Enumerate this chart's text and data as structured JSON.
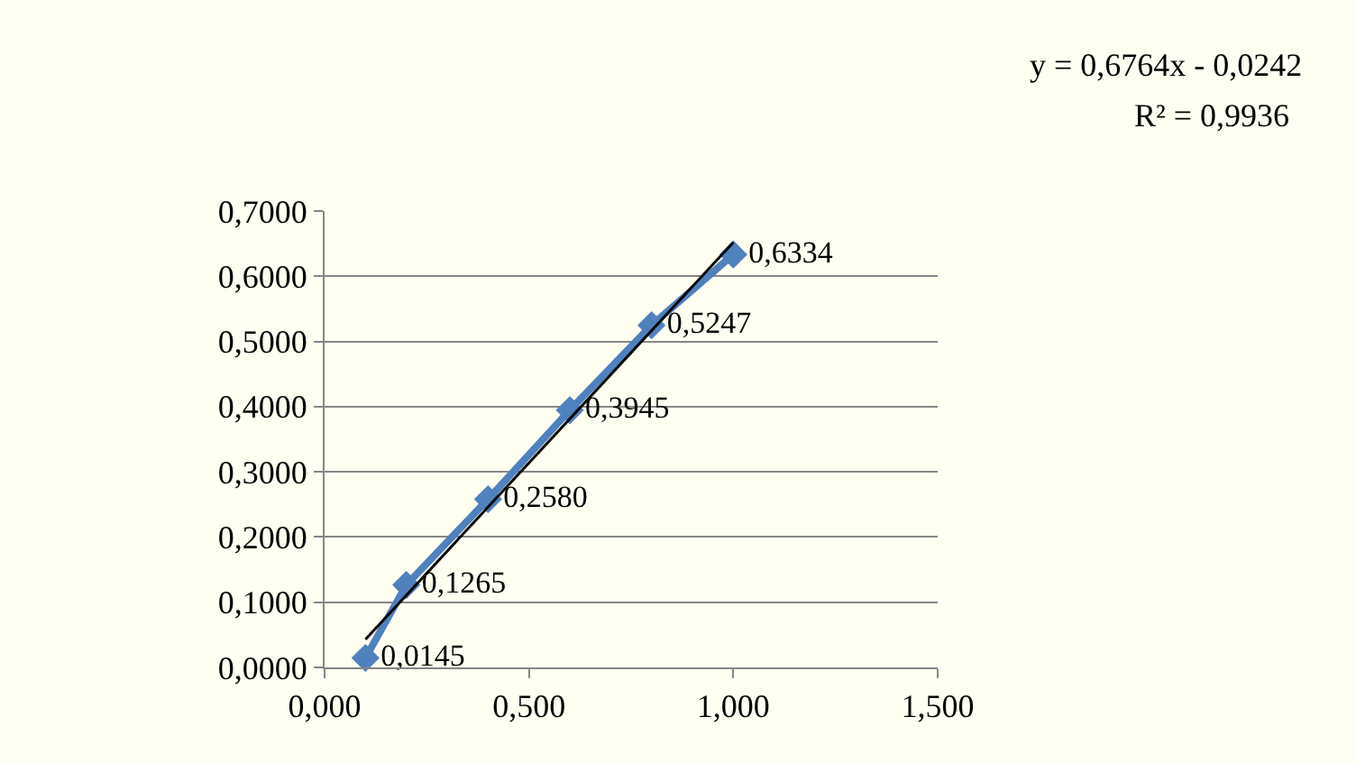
{
  "chart_data": {
    "type": "line",
    "series": [
      {
        "color": "#4f81bd",
        "marker": "diamond",
        "x": [
          0.1,
          0.2,
          0.4,
          0.6,
          0.8,
          1.0
        ],
        "values": [
          0.0145,
          0.1265,
          0.258,
          0.3945,
          0.5247,
          0.6334
        ],
        "value_labels": [
          "0,0145",
          "0,1265",
          "0,2580",
          "0,3945",
          "0,5247",
          "0,6334"
        ]
      },
      {
        "color": "#000000",
        "marker": "none",
        "x": [
          0.1,
          1.0
        ],
        "values": [
          0.043,
          0.652
        ]
      }
    ],
    "annotations": [
      "y = 0,6764x - 0,0242",
      "R² = 0,9936"
    ],
    "xlim": [
      0,
      1.5
    ],
    "xticks": [
      {
        "value": 0,
        "label": "0,000"
      },
      {
        "value": 0.5,
        "label": "0,500"
      },
      {
        "value": 1.0,
        "label": "1,000"
      },
      {
        "value": 1.5,
        "label": "1,500"
      }
    ],
    "ylim": [
      0,
      0.7
    ],
    "yticks": [
      {
        "value": 0,
        "label": "0,0000"
      },
      {
        "value": 0.1,
        "label": "0,1000"
      },
      {
        "value": 0.2,
        "label": "0,2000"
      },
      {
        "value": 0.3,
        "label": "0,3000"
      },
      {
        "value": 0.4,
        "label": "0,4000"
      },
      {
        "value": 0.5,
        "label": "0,5000"
      },
      {
        "value": 0.6,
        "label": "0,6000"
      },
      {
        "value": 0.7,
        "label": "0,7000"
      }
    ],
    "grid": "y",
    "legend": false
  }
}
